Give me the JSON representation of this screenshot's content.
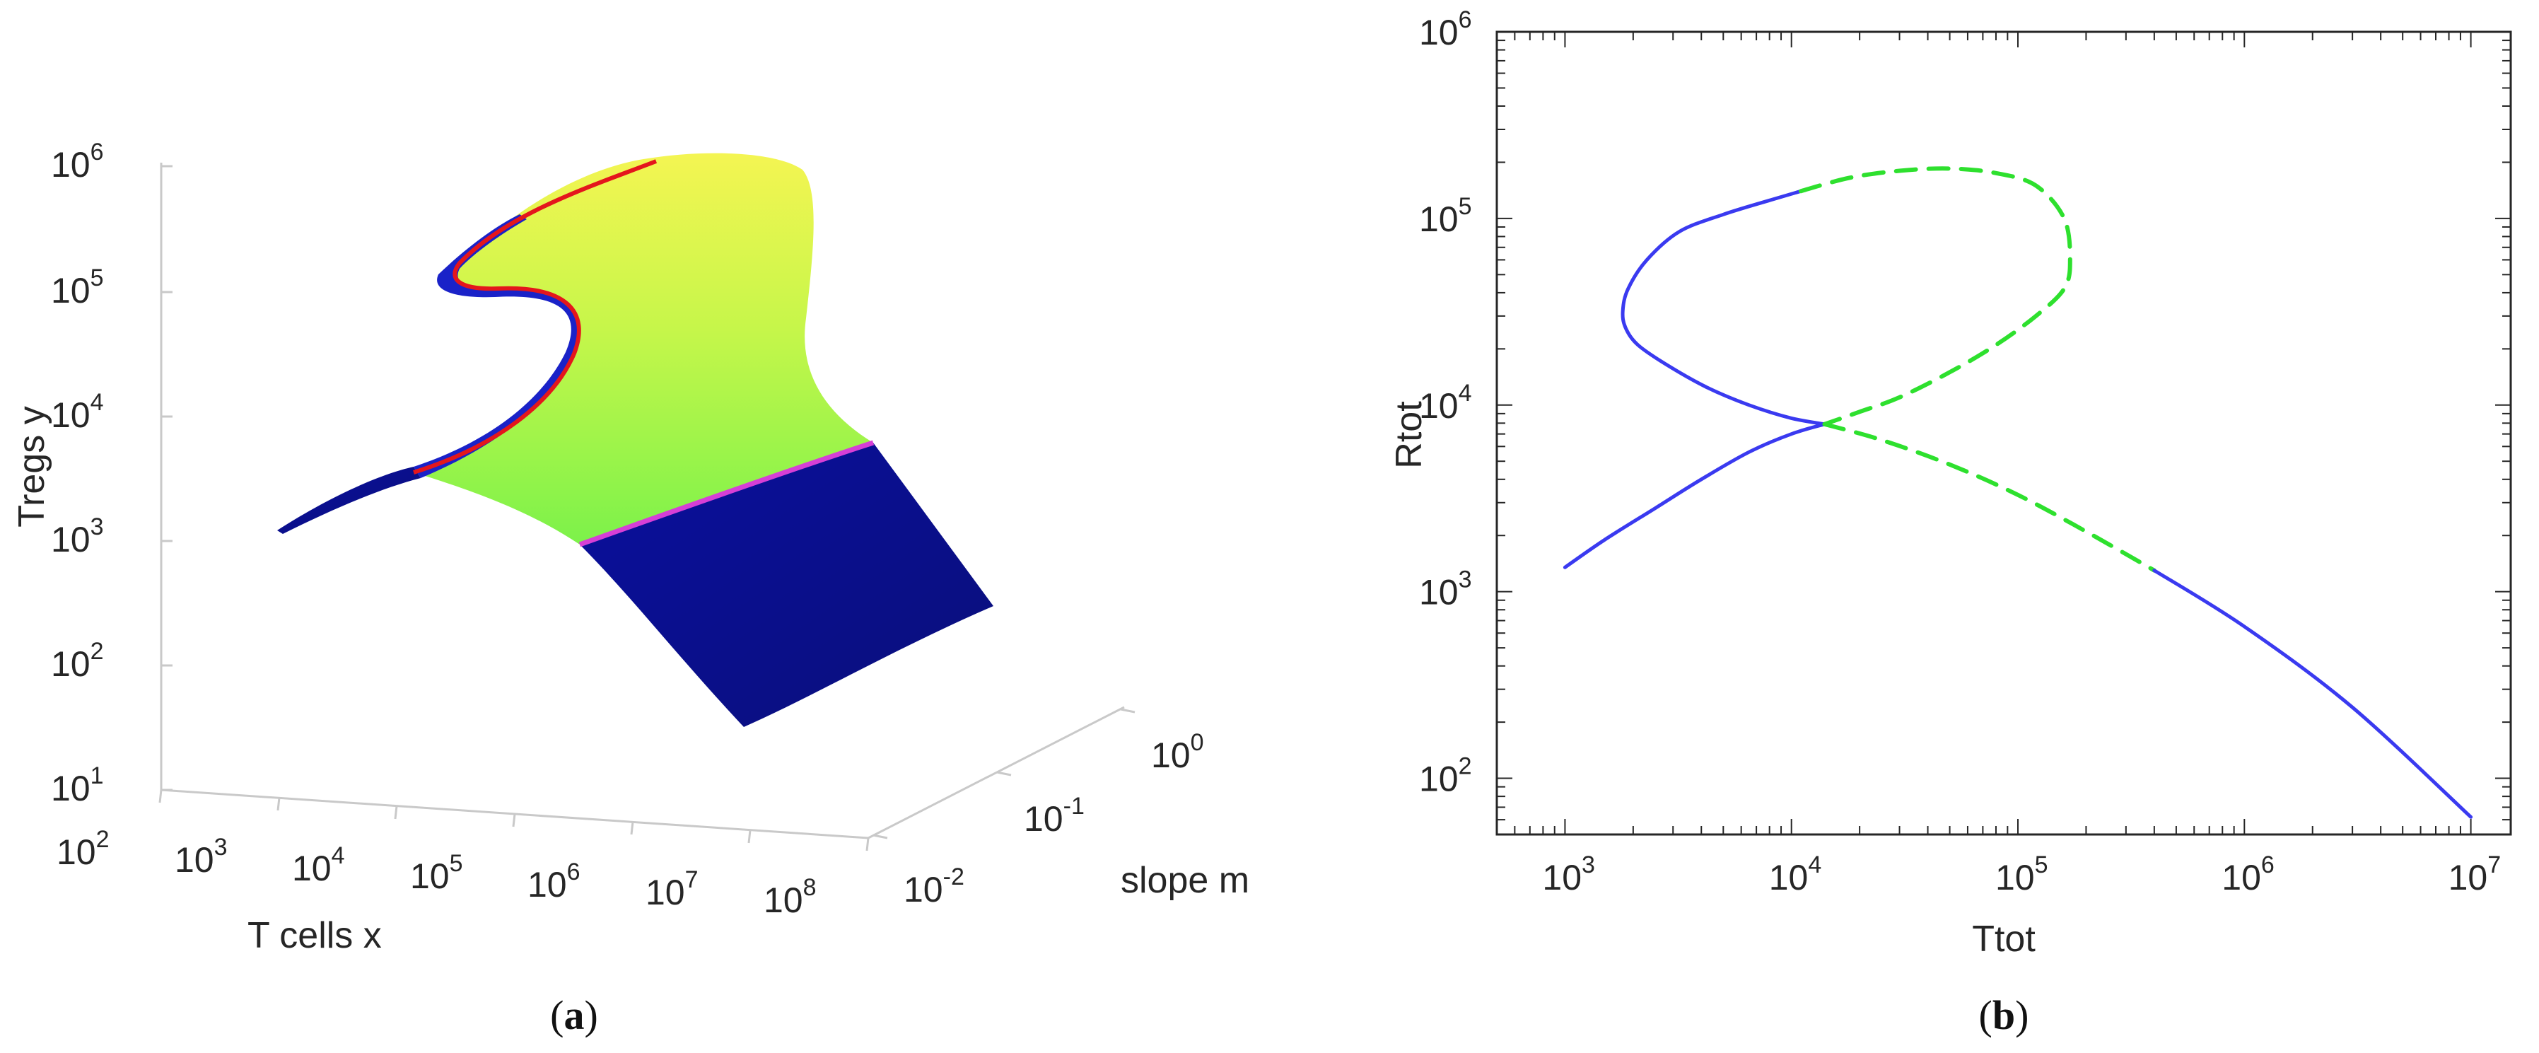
{
  "chart_data": [
    {
      "panel": "a",
      "type": "surface",
      "caption_letter": "a",
      "xlabel": "T cells x",
      "ylabel": "Tregs y",
      "zlabel": "slope m",
      "x_scale": "log",
      "y_scale": "log",
      "z_scale": "log",
      "x_ticks": [
        {
          "base": "10",
          "exp": "2"
        },
        {
          "base": "10",
          "exp": "3"
        },
        {
          "base": "10",
          "exp": "4"
        },
        {
          "base": "10",
          "exp": "5"
        },
        {
          "base": "10",
          "exp": "6"
        },
        {
          "base": "10",
          "exp": "7"
        },
        {
          "base": "10",
          "exp": "8"
        }
      ],
      "y_ticks": [
        {
          "base": "10",
          "exp": "1"
        },
        {
          "base": "10",
          "exp": "2"
        },
        {
          "base": "10",
          "exp": "3"
        },
        {
          "base": "10",
          "exp": "4"
        },
        {
          "base": "10",
          "exp": "5"
        },
        {
          "base": "10",
          "exp": "6"
        }
      ],
      "z_ticks": [
        {
          "base": "10",
          "exp": "-2"
        },
        {
          "base": "10",
          "exp": "-1"
        },
        {
          "base": "10",
          "exp": "0"
        }
      ],
      "surface_colors": {
        "low": "#0a0f9e",
        "mid": "#7cf24a",
        "high": "#f4f552"
      },
      "fold_line_colors": {
        "upper": "#e4161c",
        "lower": "#d63fd6"
      }
    },
    {
      "panel": "b",
      "type": "line",
      "caption_letter": "b",
      "xlabel": "Ttot",
      "ylabel": "Rtot",
      "x_scale": "log",
      "y_scale": "log",
      "xlim": [
        500,
        15000000
      ],
      "ylim": [
        50,
        1000000
      ],
      "x_ticks": [
        {
          "value": 1000,
          "base": "10",
          "exp": "3"
        },
        {
          "value": 10000,
          "base": "10",
          "exp": "4"
        },
        {
          "value": 100000,
          "base": "10",
          "exp": "5"
        },
        {
          "value": 1000000,
          "base": "10",
          "exp": "6"
        },
        {
          "value": 10000000,
          "base": "10",
          "exp": "7"
        }
      ],
      "y_ticks": [
        {
          "value": 100,
          "base": "10",
          "exp": "2"
        },
        {
          "value": 1000,
          "base": "10",
          "exp": "3"
        },
        {
          "value": 10000,
          "base": "10",
          "exp": "4"
        },
        {
          "value": 100000,
          "base": "10",
          "exp": "5"
        },
        {
          "value": 1000000,
          "base": "10",
          "exp": "6"
        }
      ],
      "series": [
        {
          "style": "solid",
          "color": "#3a3af0",
          "x": [
            1000,
            1500,
            2500,
            4000,
            6500,
            10000,
            14000
          ],
          "y": [
            1350,
            1900,
            2800,
            4000,
            5600,
            7000,
            7900
          ]
        },
        {
          "style": "solid",
          "color": "#3a3af0",
          "x": [
            14000,
            10000,
            6500,
            4200,
            2800,
            2100,
            1850,
            1800,
            1900,
            2300,
            3200,
            5000,
            8000,
            11000
          ],
          "y": [
            7900,
            8500,
            10000,
            12500,
            16500,
            21000,
            26000,
            32000,
            42000,
            60000,
            85000,
            105000,
            125000,
            140000
          ]
        },
        {
          "style": "dashed",
          "color": "#2ee02e",
          "x": [
            11000,
            18000,
            30000,
            50000,
            80000,
            120000,
            160000,
            170000,
            160000,
            120000,
            80000,
            50000,
            30000,
            20000,
            14000
          ],
          "y": [
            140000,
            165000,
            180000,
            185000,
            175000,
            150000,
            100000,
            60000,
            42000,
            30000,
            21000,
            15000,
            11000,
            9200,
            7900
          ]
        },
        {
          "style": "dashed",
          "color": "#2ee02e",
          "x": [
            14000,
            25000,
            50000,
            100000,
            200000,
            400000
          ],
          "y": [
            7900,
            6500,
            4800,
            3300,
            2100,
            1300
          ]
        },
        {
          "style": "solid",
          "color": "#3a3af0",
          "x": [
            400000,
            1000000,
            3000000,
            10000000
          ],
          "y": [
            1300,
            650,
            240,
            62
          ]
        }
      ]
    }
  ]
}
